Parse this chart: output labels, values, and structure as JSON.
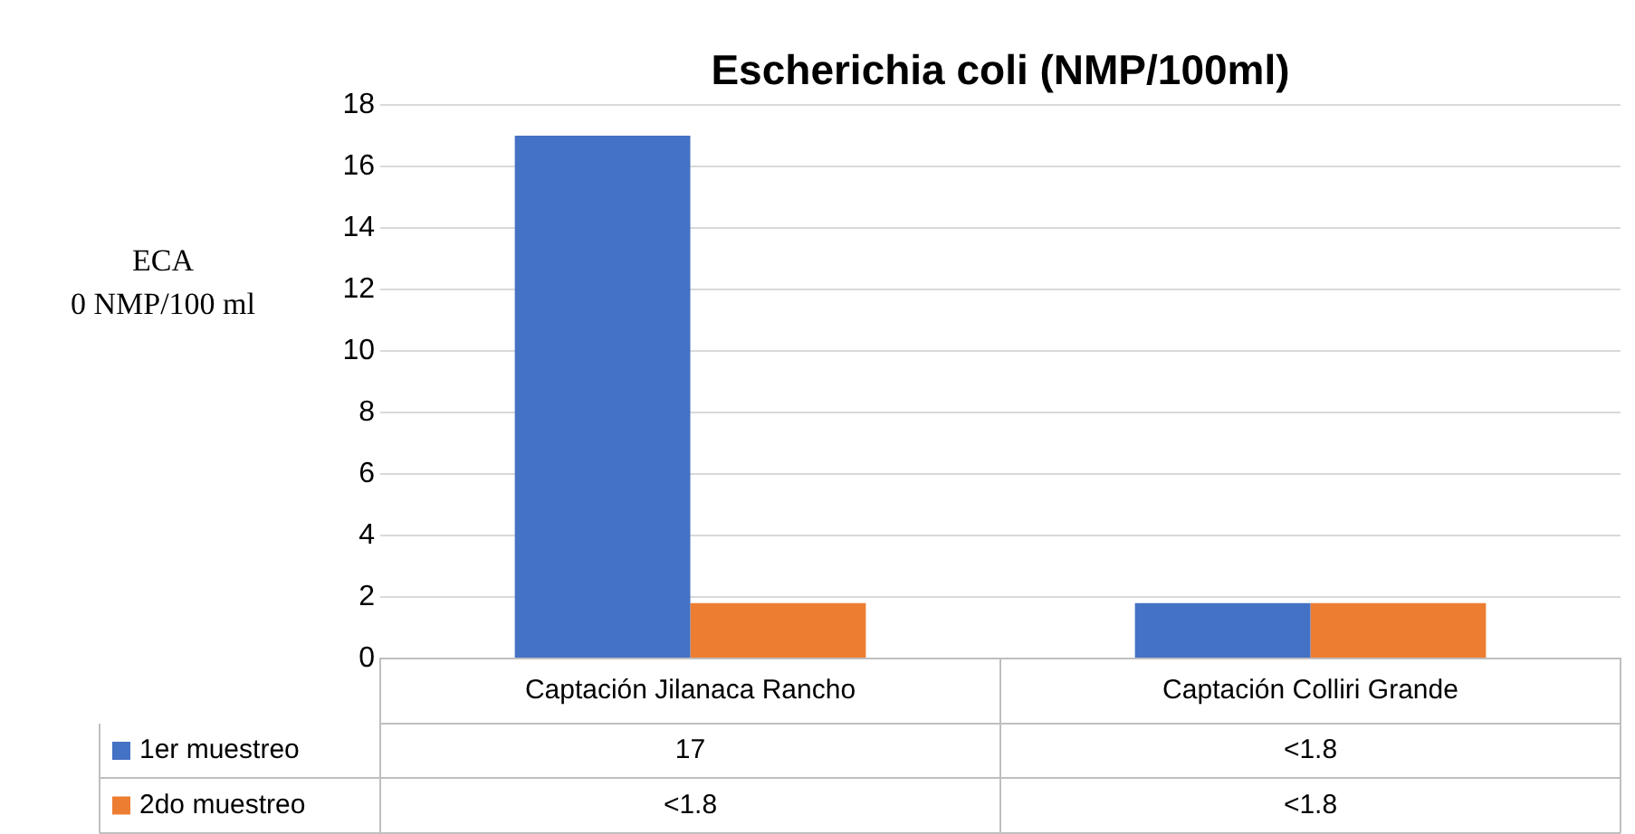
{
  "chart_data": {
    "type": "bar",
    "title": "Escherichia coli (NMP/100ml)",
    "categories": [
      "Captación Jilanaca Rancho",
      "Captación Colliri Grande"
    ],
    "series": [
      {
        "name": "1er muestreo",
        "color": "#4472c4",
        "values": [
          17,
          1.8
        ],
        "value_labels": [
          "17",
          "<1.8"
        ]
      },
      {
        "name": "2do muestreo",
        "color": "#ed7d31",
        "values": [
          1.8,
          1.8
        ],
        "value_labels": [
          "<1.8",
          "<1.8"
        ]
      }
    ],
    "ylim": [
      0,
      18
    ],
    "yticks": [
      0,
      2,
      4,
      6,
      8,
      10,
      12,
      14,
      16,
      18
    ],
    "grid": "y",
    "legend": "bottom",
    "annotations": [
      "ECA",
      "0 NMP/100 ml"
    ]
  }
}
